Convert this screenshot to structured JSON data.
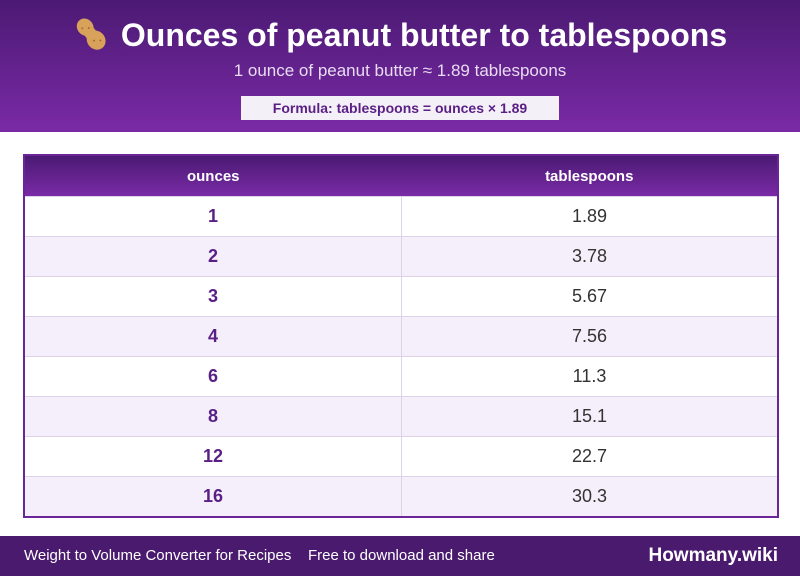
{
  "header": {
    "title": "Ounces of peanut butter to tablespoons",
    "subtitle": "1 ounce of peanut butter ≈ 1.89 tablespoons",
    "formula": "Formula: tablespoons = ounces × 1.89"
  },
  "table": {
    "columns": [
      "ounces",
      "tablespoons"
    ],
    "rows": [
      [
        "1",
        "1.89"
      ],
      [
        "2",
        "3.78"
      ],
      [
        "3",
        "5.67"
      ],
      [
        "4",
        "7.56"
      ],
      [
        "6",
        "11.3"
      ],
      [
        "8",
        "15.1"
      ],
      [
        "12",
        "22.7"
      ],
      [
        "16",
        "30.3"
      ]
    ]
  },
  "footer": {
    "left": "Weight to Volume Converter for Recipes",
    "middle": "Free to download and share",
    "brand": "Howmany.wiki"
  }
}
